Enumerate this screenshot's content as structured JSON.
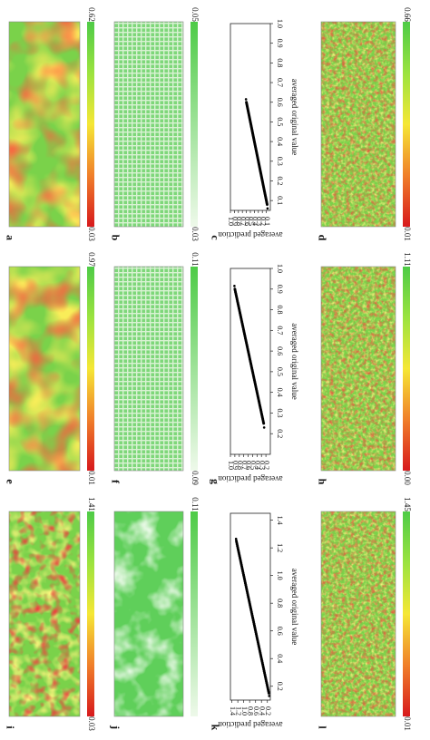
{
  "figure": {
    "colors": {
      "red": "#d7191c",
      "orange": "#f07f2a",
      "yellow": "#f5e735",
      "lime": "#9be33f",
      "green": "#4ecb47",
      "pale": "#eef9ea"
    },
    "rows": [
      {
        "panels": [
          {
            "letter": "a",
            "kind": "map",
            "cmax": "0.62",
            "cmin": "0.03",
            "scale": "warm"
          },
          {
            "letter": "b",
            "kind": "grid",
            "cmax": "0.05",
            "cmin": "0.03",
            "scale": "green"
          },
          {
            "letter": "c",
            "kind": "scatter"
          },
          {
            "letter": "d",
            "kind": "noise",
            "cmax": "0.66",
            "cmin": "0.01",
            "scale": "warm"
          }
        ]
      },
      {
        "panels": [
          {
            "letter": "e",
            "kind": "map",
            "cmax": "0.97",
            "cmin": "0.01",
            "scale": "warm"
          },
          {
            "letter": "f",
            "kind": "grid",
            "cmax": "0.11",
            "cmin": "0.09",
            "scale": "green"
          },
          {
            "letter": "g",
            "kind": "scatter"
          },
          {
            "letter": "h",
            "kind": "noise",
            "cmax": "1.11",
            "cmin": "0.00",
            "scale": "warm"
          }
        ]
      },
      {
        "panels": [
          {
            "letter": "i",
            "kind": "map",
            "cmax": "1.41",
            "cmin": "0.03",
            "scale": "warm"
          },
          {
            "letter": "j",
            "kind": "blotch",
            "cmax": "0.11",
            "cmin": "",
            "scale": "green"
          },
          {
            "letter": "k",
            "kind": "scatter"
          },
          {
            "letter": "l",
            "kind": "noise",
            "cmax": "1.45",
            "cmin": "0.01",
            "scale": "warm"
          }
        ]
      }
    ]
  },
  "chart_data": [
    {
      "panel": "c",
      "type": "scatter",
      "xlabel": "averaged original value",
      "ylabel": "averaged prediction",
      "xticks": [
        "0.1",
        "0.2",
        "0.3",
        "0.4",
        "0.5",
        "0.6",
        "0.7",
        "0.8",
        "0.9",
        "1.0"
      ],
      "yticks": [
        "0.1",
        "0.2",
        "0.3",
        "0.4",
        "0.5",
        "0.6",
        "0.7",
        "0.8",
        "0.9",
        "1.0"
      ],
      "xlim": [
        0.05,
        1.0
      ],
      "ylim": [
        0.0,
        1.0
      ],
      "series": [
        {
          "x_start": 0.08,
          "y_start": 0.08,
          "x_end": 0.6,
          "y_end": 0.6
        }
      ]
    },
    {
      "panel": "g",
      "type": "scatter",
      "xlabel": "averaged original value",
      "ylabel": "averaged prediction",
      "xticks": [
        "0.2",
        "0.3",
        "0.4",
        "0.5",
        "0.6",
        "0.7",
        "0.8",
        "0.9",
        "1.0"
      ],
      "yticks": [
        "0.2",
        "0.3",
        "0.4",
        "0.5",
        "0.6",
        "0.7",
        "0.8",
        "0.9",
        "1.0"
      ],
      "xlim": [
        0.1,
        1.0
      ],
      "ylim": [
        0.1,
        1.0
      ],
      "series": [
        {
          "x_start": 0.25,
          "y_start": 0.25,
          "x_end": 0.9,
          "y_end": 0.9
        }
      ]
    },
    {
      "panel": "k",
      "type": "scatter",
      "xlabel": "averaged original value",
      "ylabel": "averaged prediction",
      "xticks": [
        "0.2",
        "0.4",
        "0.6",
        "0.8",
        "1.0",
        "1.2",
        "1.4"
      ],
      "yticks": [
        "0.2",
        "0.4",
        "0.6",
        "0.8",
        "1.0",
        "1.2",
        "1.4"
      ],
      "xlim": [
        0.1,
        1.45
      ],
      "ylim": [
        0.1,
        1.45
      ],
      "series": [
        {
          "x_start": 0.15,
          "y_start": 0.15,
          "x_end": 1.25,
          "y_end": 1.25
        }
      ]
    }
  ]
}
